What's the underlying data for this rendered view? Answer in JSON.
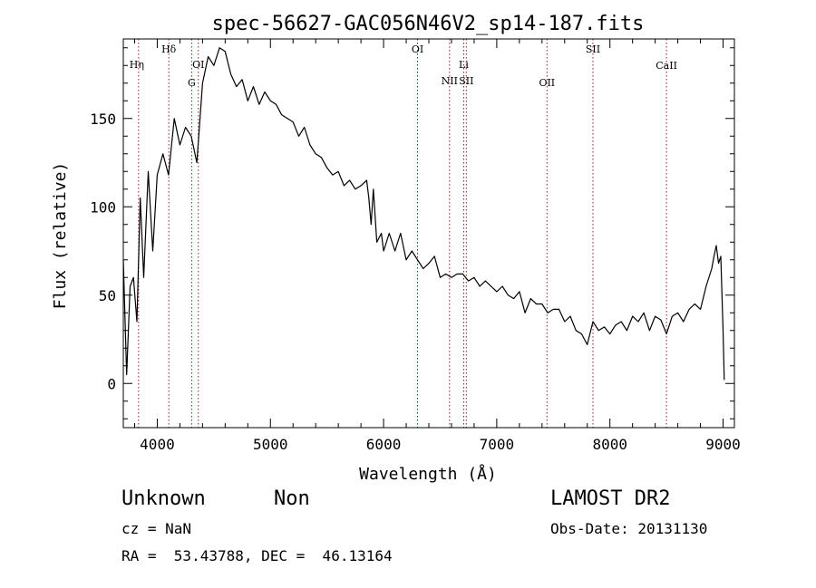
{
  "chart_data": {
    "type": "line",
    "title": "spec-56627-GAC056N46V2_sp14-187.fits",
    "xlabel": "Wavelength (Å)",
    "ylabel": "Flux (relative)",
    "xlim": [
      3700,
      9100
    ],
    "ylim": [
      -25,
      195
    ],
    "x_ticks": [
      4000,
      5000,
      6000,
      7000,
      8000,
      9000
    ],
    "x_tick_labels": [
      "4000",
      "5000",
      "6000",
      "7000",
      "8000",
      "9000"
    ],
    "y_ticks": [
      0,
      50,
      100,
      150
    ],
    "y_tick_labels": [
      "0",
      "50",
      "100",
      "150"
    ],
    "grid": false,
    "series": [
      {
        "color": "#000000",
        "x": [
          3700,
          3730,
          3760,
          3790,
          3820,
          3850,
          3880,
          3920,
          3960,
          4000,
          4050,
          4100,
          4150,
          4200,
          4250,
          4300,
          4350,
          4400,
          4450,
          4500,
          4550,
          4600,
          4650,
          4700,
          4750,
          4800,
          4850,
          4900,
          4950,
          5000,
          5050,
          5100,
          5150,
          5200,
          5250,
          5300,
          5350,
          5400,
          5450,
          5500,
          5550,
          5600,
          5650,
          5700,
          5750,
          5800,
          5850,
          5870,
          5890,
          5910,
          5940,
          5980,
          6000,
          6050,
          6100,
          6150,
          6200,
          6250,
          6300,
          6350,
          6400,
          6450,
          6500,
          6550,
          6600,
          6650,
          6700,
          6750,
          6800,
          6850,
          6900,
          6950,
          7000,
          7050,
          7100,
          7150,
          7200,
          7250,
          7300,
          7350,
          7400,
          7450,
          7500,
          7550,
          7600,
          7650,
          7700,
          7750,
          7800,
          7850,
          7900,
          7950,
          8000,
          8050,
          8100,
          8150,
          8200,
          8250,
          8300,
          8350,
          8400,
          8450,
          8500,
          8550,
          8600,
          8650,
          8700,
          8750,
          8800,
          8850,
          8900,
          8920,
          8940,
          8960,
          8980,
          9000,
          9010
        ],
        "y": [
          70,
          5,
          55,
          60,
          35,
          105,
          60,
          120,
          75,
          118,
          130,
          118,
          150,
          135,
          145,
          140,
          125,
          170,
          185,
          180,
          190,
          188,
          175,
          168,
          172,
          160,
          168,
          158,
          165,
          160,
          158,
          152,
          150,
          148,
          140,
          145,
          135,
          130,
          128,
          122,
          118,
          120,
          112,
          115,
          110,
          112,
          115,
          105,
          90,
          110,
          80,
          85,
          75,
          85,
          75,
          85,
          70,
          75,
          70,
          65,
          68,
          72,
          60,
          62,
          60,
          62,
          62,
          58,
          60,
          55,
          58,
          55,
          52,
          55,
          50,
          48,
          52,
          40,
          48,
          45,
          45,
          40,
          42,
          42,
          35,
          38,
          30,
          28,
          22,
          35,
          30,
          32,
          28,
          33,
          35,
          30,
          38,
          35,
          40,
          30,
          38,
          36,
          28,
          38,
          40,
          35,
          42,
          45,
          42,
          55,
          65,
          72,
          78,
          68,
          72,
          30,
          2
        ]
      }
    ],
    "line_marks": [
      {
        "x": 3835,
        "label": "Hη"
      },
      {
        "x": 4102,
        "label": "Hδ"
      },
      {
        "x": 4304,
        "label": "G"
      },
      {
        "x": 4363,
        "label": "OI"
      },
      {
        "x": 6300,
        "label": "OI"
      },
      {
        "x": 6583,
        "label": "NII"
      },
      {
        "x": 6708,
        "label": "Li"
      },
      {
        "x": 6731,
        "label": "SII"
      },
      {
        "x": 7444,
        "label": "OII"
      },
      {
        "x": 7850,
        "label": "SII"
      },
      {
        "x": 8500,
        "label": "CaII"
      }
    ],
    "line_mark_color": "#8b1a1a"
  },
  "info": {
    "class_label": "Unknown",
    "subclass_label": "Non",
    "survey_label": "LAMOST DR2",
    "cz_text": "cz = NaN",
    "obs_date_text": "Obs-Date: 20131130",
    "coords_text": "RA =  53.43788, DEC =  46.13164"
  }
}
